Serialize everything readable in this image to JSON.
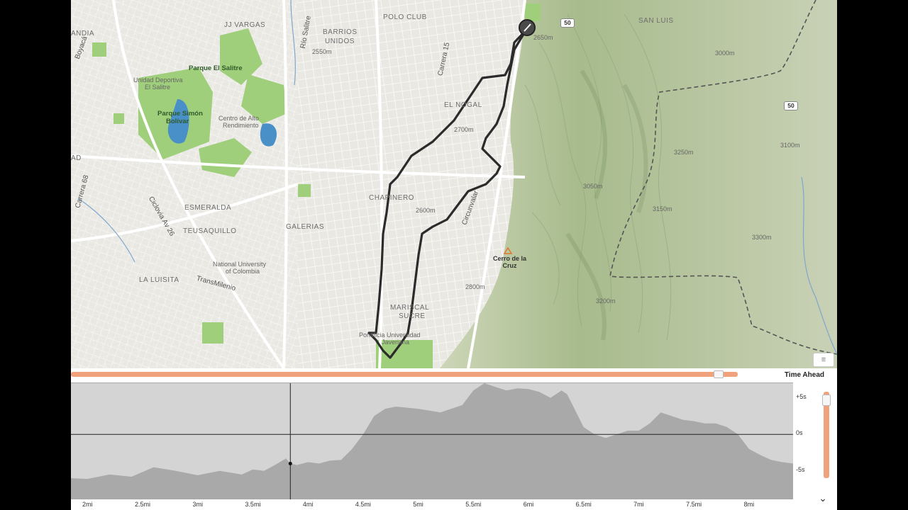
{
  "map": {
    "neighborhood_labels": [
      {
        "text": "POLO CLUB"
      },
      {
        "text": "JJ VARGAS"
      },
      {
        "text": "BARRIOS"
      },
      {
        "text": "UNIDOS"
      },
      {
        "text": "EL NOGAL"
      },
      {
        "text": "CHAPINERO"
      },
      {
        "text": "ESMERALDA"
      },
      {
        "text": "TEUSAQUILLO"
      },
      {
        "text": "GALERIAS"
      },
      {
        "text": "LA LUISITA"
      },
      {
        "text": "MARISCAL"
      },
      {
        "text": "SUCRE"
      },
      {
        "text": "SAN LUIS"
      },
      {
        "text": "ANDIA"
      },
      {
        "text": "AD"
      }
    ],
    "park_labels": [
      {
        "text": "Parque El Salitre"
      },
      {
        "text": "Unidad Deportiva"
      },
      {
        "text": "El Salitre"
      },
      {
        "text": "Parque Simón"
      },
      {
        "text": "Bolívar"
      },
      {
        "text": "Centro de Alto"
      },
      {
        "text": "Rendimiento"
      }
    ],
    "road_labels": [
      {
        "text": "Carrera 15"
      },
      {
        "text": "Circunvalar"
      },
      {
        "text": "Ciclovia Av 26"
      },
      {
        "text": "TransMilenio"
      },
      {
        "text": "Carrera 68"
      },
      {
        "text": "Boyacá"
      },
      {
        "text": "Río Salitre"
      }
    ],
    "poi_labels": [
      {
        "text": "National University"
      },
      {
        "text": "of Colombia"
      },
      {
        "text": "Pontificia Universidad"
      },
      {
        "text": "Javeriana"
      }
    ],
    "peak": {
      "line1": "Cerro de la",
      "line2": "Cruz"
    },
    "shields": [
      "50",
      "50"
    ],
    "elevation_labels": [
      "2650m",
      "3000m",
      "3050m",
      "3100m",
      "3150m",
      "3200m",
      "3250m",
      "2700m",
      "2800m",
      "2550m",
      "2600m",
      "3300m"
    ],
    "layer_control": "≡",
    "colors": {
      "route": "#2b2b2b",
      "park": "#9fcf7b",
      "water": "#4a90c8",
      "terrain": "#b9c8a1"
    }
  },
  "timeline": {
    "title": "Time Ahead",
    "position": 0.975,
    "color": "#f0a27c"
  },
  "chart_data": {
    "type": "area",
    "xlabel": "",
    "ylabel": "",
    "x_ticks": [
      "2mi",
      "2.5mi",
      "3mi",
      "3.5mi",
      "4mi",
      "4.5mi",
      "5mi",
      "5.5mi",
      "6mi",
      "6.5mi",
      "7mi",
      "7.5mi",
      "8mi"
    ],
    "y_ticks": [
      "+5s",
      "0s",
      "-5s"
    ],
    "xlim": [
      1.85,
      8.4
    ],
    "ylim": [
      -9,
      7
    ],
    "cursor_x": 3.84,
    "cursor_y": -4,
    "x": [
      1.85,
      2.0,
      2.2,
      2.4,
      2.6,
      2.8,
      3.0,
      3.2,
      3.4,
      3.5,
      3.6,
      3.7,
      3.8,
      3.84,
      3.9,
      4.0,
      4.1,
      4.2,
      4.3,
      4.4,
      4.5,
      4.6,
      4.7,
      4.8,
      5.0,
      5.2,
      5.4,
      5.5,
      5.6,
      5.7,
      5.8,
      5.9,
      6.0,
      6.1,
      6.2,
      6.3,
      6.35,
      6.4,
      6.5,
      6.6,
      6.7,
      6.8,
      6.9,
      7.0,
      7.1,
      7.2,
      7.3,
      7.4,
      7.5,
      7.6,
      7.7,
      7.8,
      7.9,
      8.0,
      8.1,
      8.2,
      8.3,
      8.4
    ],
    "values": [
      -6,
      -6.1,
      -5.5,
      -5.8,
      -4.5,
      -5.0,
      -5.6,
      -5.0,
      -5.5,
      -4.8,
      -5.0,
      -4.2,
      -3.3,
      -4.0,
      -4.2,
      -3.8,
      -4.0,
      -3.6,
      -3.5,
      -2.0,
      0.0,
      2.5,
      3.5,
      3.8,
      3.5,
      3.0,
      4.0,
      6.0,
      7.0,
      6.5,
      6.0,
      6.3,
      6.2,
      5.8,
      5.0,
      6.0,
      5.5,
      4.0,
      1.0,
      0.0,
      -0.5,
      0.0,
      0.5,
      0.5,
      1.5,
      3.0,
      2.5,
      2.0,
      1.8,
      1.5,
      1.5,
      1.0,
      0.0,
      -2.0,
      -2.8,
      -3.5,
      -3.8,
      -4.0
    ],
    "fill_color": "#a9a9a9",
    "background_color": "#d4d4d4"
  },
  "vertical_slider": {
    "position": 0.05,
    "color": "#f0a27c"
  },
  "collapse_icon": "⌄"
}
